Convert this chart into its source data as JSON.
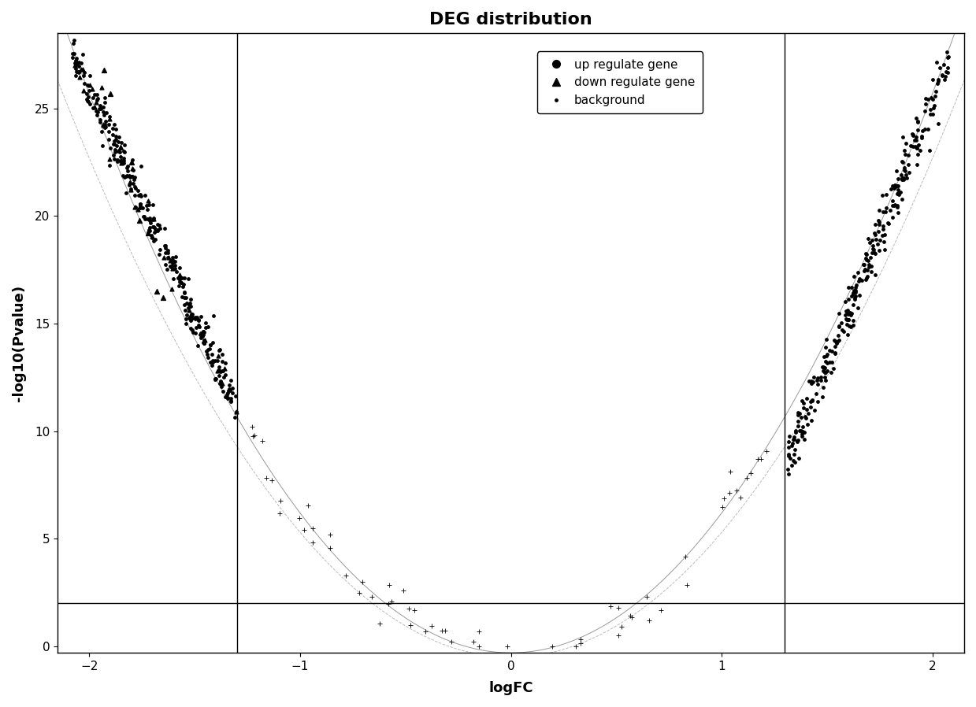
{
  "title": "DEG distribution",
  "xlabel": "logFC",
  "ylabel": "-log10(Pvalue)",
  "xlim": [
    -2.15,
    2.15
  ],
  "ylim": [
    -0.3,
    28.5
  ],
  "xticks": [
    -2,
    -1,
    0,
    1,
    2
  ],
  "yticks": [
    0,
    5,
    10,
    15,
    20,
    25
  ],
  "vline1": -1.3,
  "vline2": 1.3,
  "hline": 2.0,
  "background_color": "#ffffff",
  "point_color": "#000000",
  "title_fontsize": 16,
  "axis_label_fontsize": 13,
  "tick_fontsize": 11
}
